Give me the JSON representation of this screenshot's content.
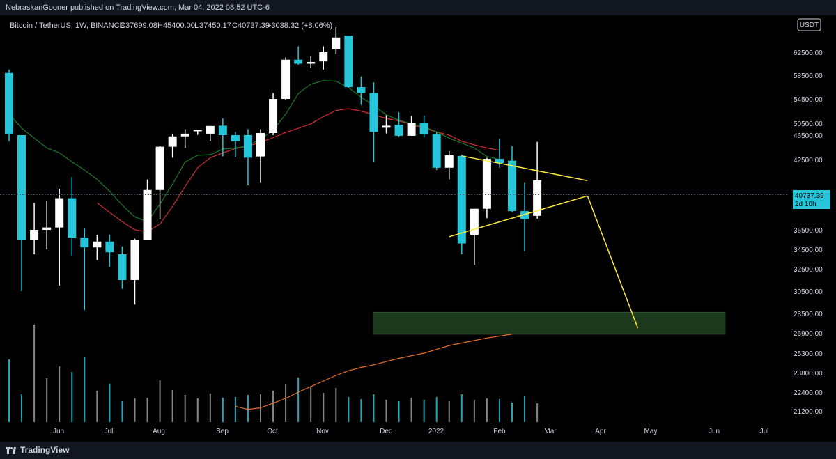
{
  "header": {
    "published_by": "NebraskanGooner published on TradingView.com, Mar 04, 2022 08:52 UTC-6"
  },
  "legend": {
    "symbol": "Bitcoin / TetherUS, 1W, BINANCE",
    "o_label": "O",
    "o_value": "37699.08",
    "h_label": "H",
    "h_value": "45400.00",
    "l_label": "L",
    "l_value": "37450.17",
    "c_label": "C",
    "c_value": "40737.39",
    "change": "+3038.32 (+8.06%)"
  },
  "price_scale": {
    "currency_button": "USDT",
    "current_price": "40737.39",
    "countdown": "2d 10h"
  },
  "footer": {
    "brand": "TradingView"
  },
  "colors": {
    "up": "#ffffff",
    "down": "#26c6da",
    "ma_red": "#d32f2f",
    "ma_green": "#1b7a2a",
    "ma_orange": "#e8712b",
    "annotation": "#ffeb3b",
    "zone": "#1e3a1e"
  },
  "chart_data": {
    "type": "candlestick",
    "symbol": "Bitcoin / TetherUS",
    "timeframe": "1W",
    "exchange": "BINANCE",
    "y_ticks": [
      62500,
      58500,
      54500,
      50500,
      46500,
      42500,
      36500,
      34500,
      32500,
      30500,
      28500,
      26900,
      25300,
      23800,
      22400,
      21200
    ],
    "x_ticks": [
      "Jun",
      "Jul",
      "Aug",
      "Sep",
      "Oct",
      "Nov",
      "Dec",
      "2022",
      "Feb",
      "Mar",
      "Apr",
      "May",
      "Jun",
      "Jul"
    ],
    "candles": [
      {
        "o": 58900,
        "h": 59500,
        "c": 47000,
        "l": 45500
      },
      {
        "o": 46500,
        "h": 46500,
        "c": 35500,
        "l": 30500
      },
      {
        "o": 35500,
        "h": 38800,
        "c": 36500,
        "l": 34000
      },
      {
        "o": 36500,
        "h": 39000,
        "c": 36700,
        "l": 34500
      },
      {
        "o": 36700,
        "h": 40000,
        "c": 39200,
        "l": 31000
      },
      {
        "o": 39200,
        "h": 41000,
        "c": 35700,
        "l": 33800
      },
      {
        "o": 35700,
        "h": 36600,
        "c": 34700,
        "l": 28800
      },
      {
        "o": 34700,
        "h": 36000,
        "c": 35300,
        "l": 33400
      },
      {
        "o": 35300,
        "h": 36000,
        "c": 34200,
        "l": 32700
      },
      {
        "o": 34000,
        "h": 34800,
        "c": 31500,
        "l": 30700
      },
      {
        "o": 31500,
        "h": 35600,
        "c": 35500,
        "l": 29300
      },
      {
        "o": 35500,
        "h": 40800,
        "c": 39900,
        "l": 35500
      },
      {
        "o": 39900,
        "h": 44700,
        "c": 44600,
        "l": 37400
      },
      {
        "o": 44600,
        "h": 47000,
        "c": 46300,
        "l": 42800
      },
      {
        "o": 46300,
        "h": 48500,
        "c": 47000,
        "l": 44400
      },
      {
        "o": 47800,
        "h": 48300,
        "c": 48300,
        "l": 46600
      },
      {
        "o": 47000,
        "h": 49600,
        "c": 49600,
        "l": 45500
      },
      {
        "o": 49700,
        "h": 51300,
        "c": 46500,
        "l": 43000
      },
      {
        "o": 46500,
        "h": 47600,
        "c": 45500,
        "l": 42900
      },
      {
        "o": 46500,
        "h": 48500,
        "c": 42800,
        "l": 40300
      },
      {
        "o": 43000,
        "h": 48500,
        "c": 47200,
        "l": 40500
      },
      {
        "o": 47200,
        "h": 55500,
        "c": 54500,
        "l": 46500
      },
      {
        "o": 54500,
        "h": 61600,
        "c": 61200,
        "l": 54300
      },
      {
        "o": 61200,
        "h": 63500,
        "c": 60500,
        "l": 60300
      },
      {
        "o": 60500,
        "h": 61800,
        "c": 60800,
        "l": 59700
      },
      {
        "o": 60900,
        "h": 63500,
        "c": 62500,
        "l": 59500
      },
      {
        "o": 63000,
        "h": 66700,
        "c": 65000,
        "l": 62200
      },
      {
        "o": 65300,
        "h": 65300,
        "c": 56500,
        "l": 56400
      },
      {
        "o": 56500,
        "h": 58300,
        "c": 55500,
        "l": 53500
      },
      {
        "o": 55500,
        "h": 57300,
        "c": 47600,
        "l": 42300
      },
      {
        "o": 49000,
        "h": 51800,
        "c": 49700,
        "l": 47100
      },
      {
        "o": 50000,
        "h": 52300,
        "c": 46400,
        "l": 46200
      },
      {
        "o": 46400,
        "h": 51700,
        "c": 50600,
        "l": 46400
      },
      {
        "o": 50600,
        "h": 51800,
        "c": 46900,
        "l": 46100
      },
      {
        "o": 46900,
        "h": 47500,
        "c": 41800,
        "l": 41600
      },
      {
        "o": 41800,
        "h": 43900,
        "c": 43200,
        "l": 40800
      },
      {
        "o": 43100,
        "h": 43300,
        "c": 35100,
        "l": 34000
      },
      {
        "o": 36000,
        "h": 38000,
        "c": 38300,
        "l": 32900
      },
      {
        "o": 38300,
        "h": 42800,
        "c": 42600,
        "l": 37500
      },
      {
        "o": 42600,
        "h": 45900,
        "c": 42200,
        "l": 41800
      },
      {
        "o": 42400,
        "h": 44700,
        "c": 38100,
        "l": 38000
      },
      {
        "o": 38100,
        "h": 40500,
        "c": 37400,
        "l": 34300
      },
      {
        "o": 37700,
        "h": 45400,
        "c": 40737.39,
        "l": 37450.17
      }
    ],
    "volume": [
      90,
      40,
      140,
      63,
      80,
      72,
      94,
      45,
      55,
      30,
      34,
      35,
      60,
      46,
      39,
      34,
      41,
      35,
      36,
      39,
      40,
      45,
      54,
      64,
      52,
      42,
      49,
      36,
      33,
      40,
      32,
      30,
      35,
      32,
      36,
      30,
      40,
      32,
      34,
      33,
      28,
      38,
      27
    ],
    "moving_averages": [
      {
        "color": "red",
        "values": [
          null,
          null,
          null,
          null,
          null,
          null,
          null,
          38800,
          38000,
          37200,
          36500,
          36300,
          37000,
          38500,
          40200,
          41800,
          42800,
          43600,
          44300,
          44700,
          45300,
          46100,
          47400,
          48800,
          50300,
          51600,
          52600,
          52900,
          52500,
          51900,
          51300,
          50900,
          50100,
          48800,
          47600,
          46500,
          45500,
          44900,
          44400,
          44000
        ]
      },
      {
        "color": "green",
        "values": [
          52000,
          48900,
          46000,
          44400,
          43600,
          42300,
          41600,
          40800,
          39800,
          38600,
          37600,
          37200,
          38700,
          40400,
          42300,
          43200,
          43300,
          44200,
          44400,
          44700,
          45900,
          48200,
          52000,
          55400,
          57000,
          57600,
          57500,
          56400,
          54800,
          53400,
          51900,
          51000,
          50300,
          49400,
          47600,
          46000,
          45200,
          44400,
          43000,
          42500
        ]
      },
      {
        "color": "orange",
        "values": [
          20900,
          21100,
          21400,
          21700,
          22000,
          22400,
          22800,
          23200,
          23600,
          23950,
          24200,
          24400,
          24650,
          24900,
          25100,
          25300,
          25600,
          25900,
          26100,
          26300,
          26500,
          26650,
          26800
        ]
      }
    ],
    "annotations": {
      "triangle_upper": [
        [
          36,
          43100
        ],
        [
          46,
          40700
        ]
      ],
      "triangle_lower": [
        [
          35,
          35800
        ],
        [
          46,
          39400
        ]
      ],
      "projection": [
        [
          46,
          39400
        ],
        [
          50,
          27300
        ]
      ],
      "target_zone": [
        28600,
        26800
      ]
    }
  }
}
